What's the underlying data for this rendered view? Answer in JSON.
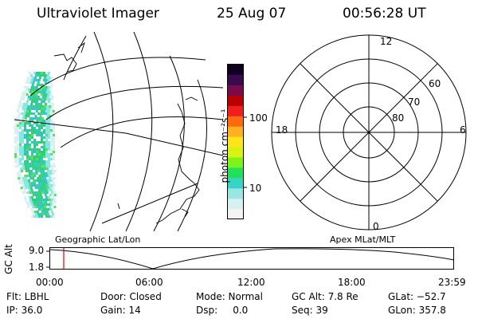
{
  "header": {
    "title": "Ultraviolet Imager",
    "date": "25 Aug 07",
    "time": "00:56:28 UT"
  },
  "colorbar": {
    "unit_label": "photon cm⁻²s⁻¹",
    "ticks": [
      {
        "label": "100",
        "value": 100
      },
      {
        "label": "10",
        "value": 10
      }
    ],
    "colors": [
      "#f4f4f4",
      "#d8f0f0",
      "#9ae6e2",
      "#39d4c8",
      "#22e05a",
      "#7ef21a",
      "#d8f212",
      "#ffe51a",
      "#ffb020",
      "#ff6a10",
      "#f01e1e",
      "#b80000",
      "#7a0a4a",
      "#3a0a50",
      "#120020"
    ]
  },
  "left_panel": {
    "caption": "Geographic Lat/Lon",
    "auroral_colors": [
      "#2fcf79",
      "#30c8c0",
      "#82e8e0",
      "#d8f0f4",
      "#5ce05c"
    ]
  },
  "right_panel": {
    "caption": "Apex MLat/MLT",
    "mlt_labels": {
      "top": "12",
      "bottom": "0",
      "left": "18",
      "right": "6"
    },
    "mlat_labels": [
      "60",
      "70",
      "80"
    ]
  },
  "timeline": {
    "ylabel": "GC Alt",
    "y_ticks": [
      "9.0",
      "1.8"
    ],
    "x_ticks": [
      "00:00",
      "06:00",
      "12:00",
      "18:00",
      "23:59"
    ],
    "marker_color": "#e00000"
  },
  "footer": {
    "row1": {
      "flt": "Flt: LBHL",
      "door": "Door: Closed",
      "mode": "Mode: Normal",
      "gc_alt": "GC Alt: 7.8 Re",
      "glat": "GLat: −52.7"
    },
    "row2": {
      "ip": "IP: 36.0",
      "gain": "Gain: 14",
      "dsp": "Dsp:     0.0",
      "seq": "Seq: 39",
      "glon": "GLon: 357.8"
    }
  }
}
